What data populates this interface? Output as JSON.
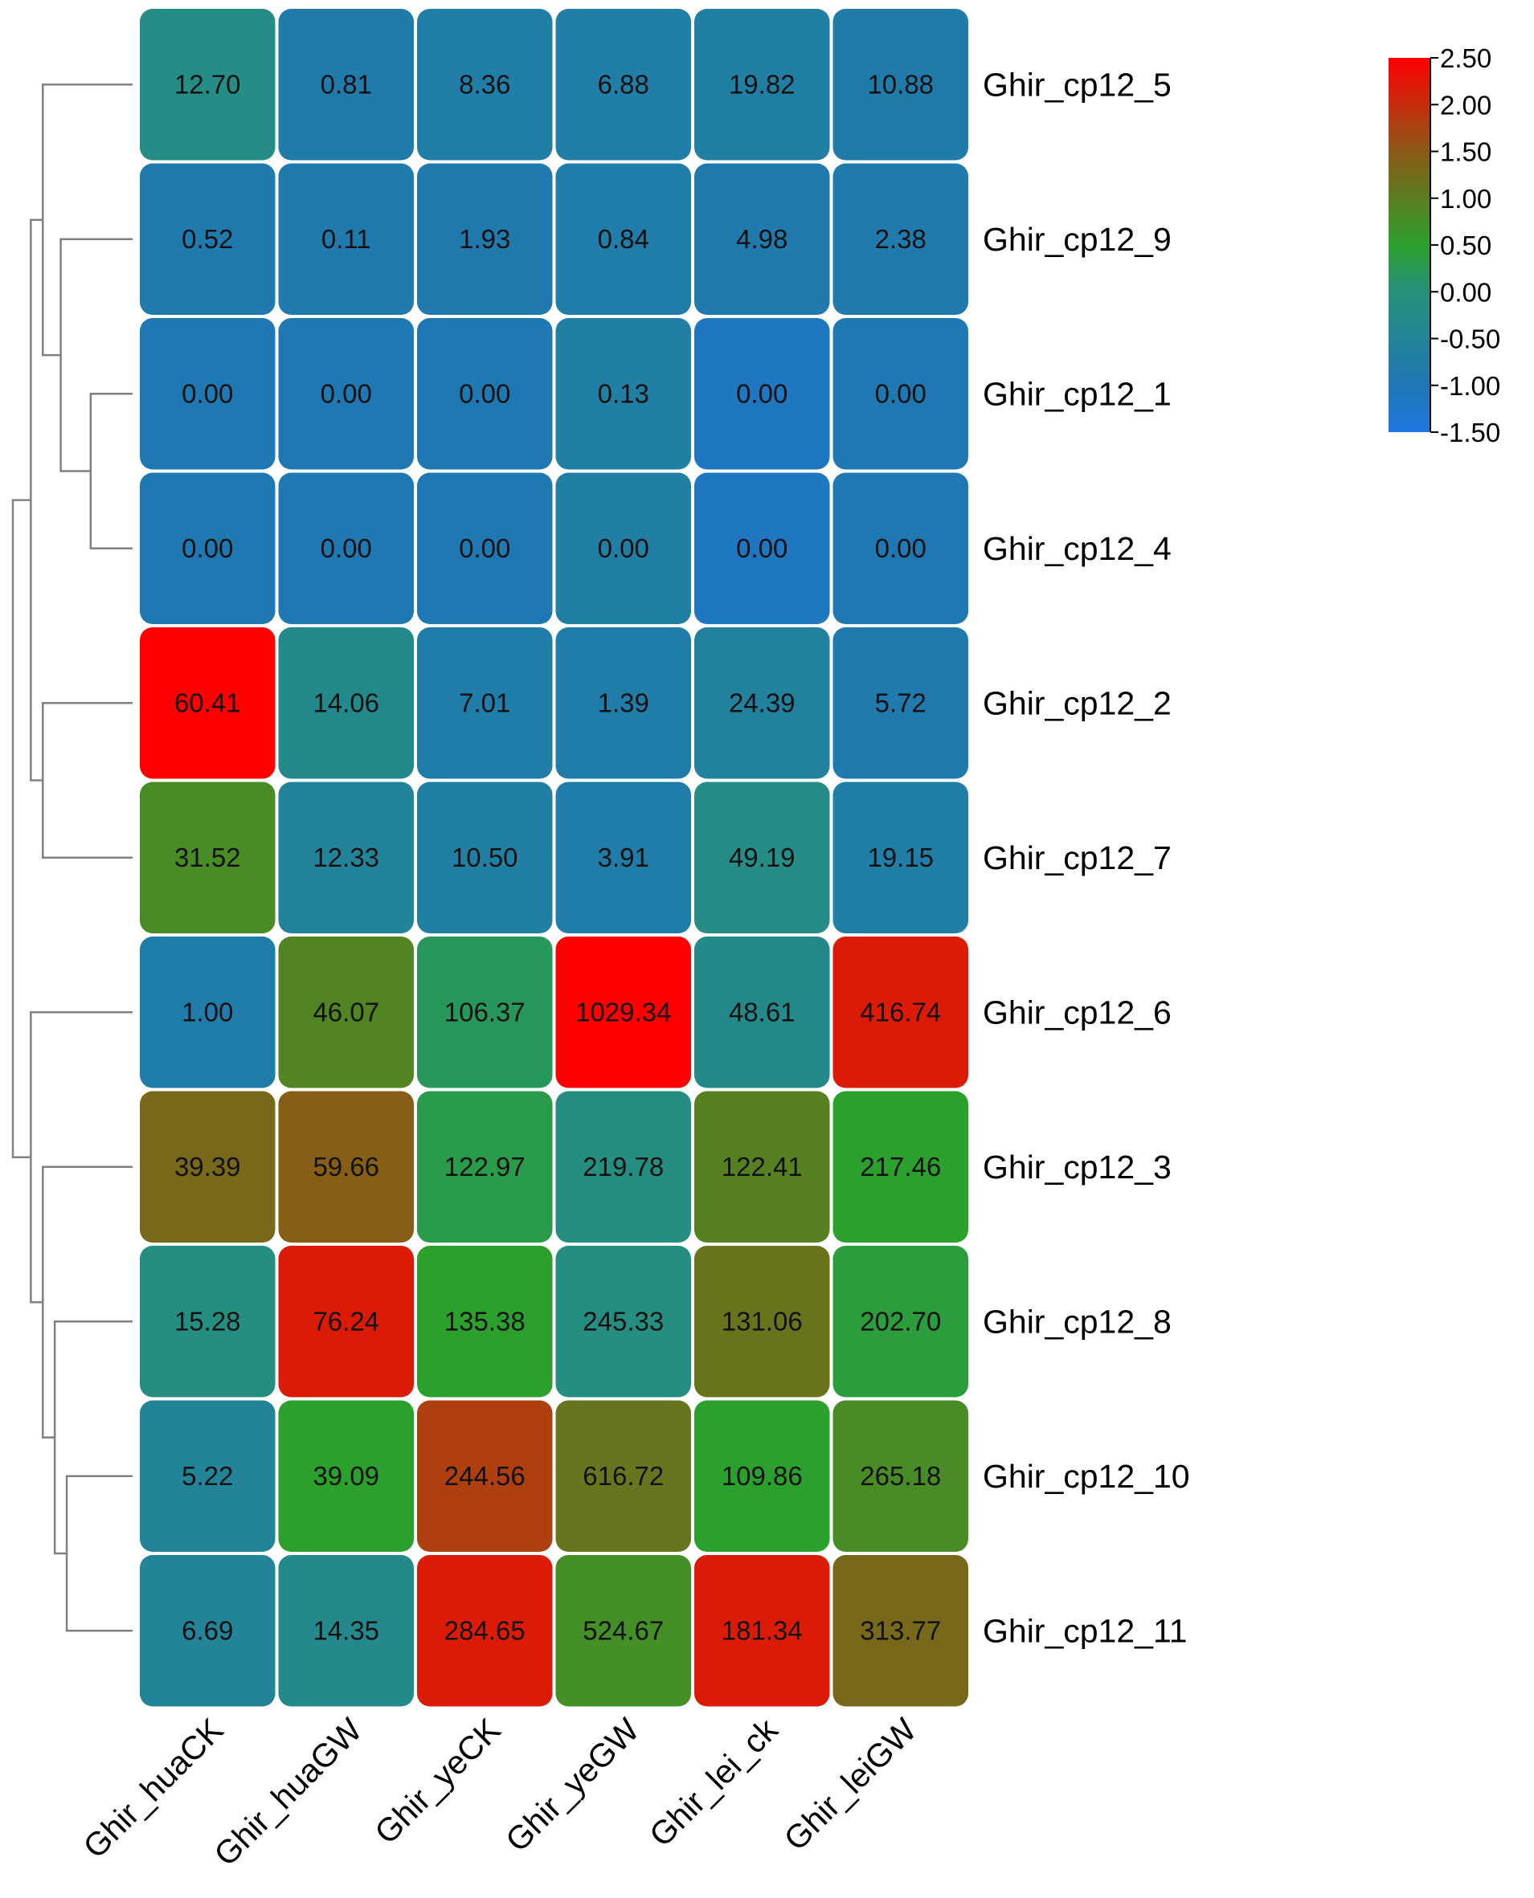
{
  "chart_data": {
    "type": "heatmap",
    "title": "",
    "xlabel": "",
    "ylabel": "",
    "columns": [
      "Ghir_huaCK",
      "Ghir_huaGW",
      "Ghir_yeCK",
      "Ghir_yeGW",
      "Ghir_lei_ck",
      "Ghir_leiGW"
    ],
    "rows": [
      "Ghir_cp12_5",
      "Ghir_cp12_9",
      "Ghir_cp12_1",
      "Ghir_cp12_4",
      "Ghir_cp12_2",
      "Ghir_cp12_7",
      "Ghir_cp12_6",
      "Ghir_cp12_3",
      "Ghir_cp12_8",
      "Ghir_cp12_10",
      "Ghir_cp12_11"
    ],
    "values": [
      [
        "12.70",
        "0.81",
        "8.36",
        "6.88",
        "19.82",
        "10.88"
      ],
      [
        "0.52",
        "0.11",
        "1.93",
        "0.84",
        "4.98",
        "2.38"
      ],
      [
        "0.00",
        "0.00",
        "0.00",
        "0.13",
        "0.00",
        "0.00"
      ],
      [
        "0.00",
        "0.00",
        "0.00",
        "0.00",
        "0.00",
        "0.00"
      ],
      [
        "60.41",
        "14.06",
        "7.01",
        "1.39",
        "24.39",
        "5.72"
      ],
      [
        "31.52",
        "12.33",
        "10.50",
        "3.91",
        "49.19",
        "19.15"
      ],
      [
        "1.00",
        "46.07",
        "106.37",
        "1029.34",
        "48.61",
        "416.74"
      ],
      [
        "39.39",
        "59.66",
        "122.97",
        "219.78",
        "122.41",
        "217.46"
      ],
      [
        "15.28",
        "76.24",
        "135.38",
        "245.33",
        "131.06",
        "202.70"
      ],
      [
        "5.22",
        "39.09",
        "244.56",
        "616.72",
        "109.86",
        "265.18"
      ],
      [
        "6.69",
        "14.35",
        "284.65",
        "524.67",
        "181.34",
        "313.77"
      ]
    ],
    "color_scores": [
      [
        -0.2,
        -0.85,
        -0.75,
        -0.75,
        -0.7,
        -0.85
      ],
      [
        -0.9,
        -0.9,
        -0.9,
        -0.8,
        -0.9,
        -0.9
      ],
      [
        -0.95,
        -0.95,
        -0.95,
        -0.7,
        -1.15,
        -0.95
      ],
      [
        -0.95,
        -0.95,
        -0.95,
        -0.7,
        -1.15,
        -0.95
      ],
      [
        2.5,
        -0.3,
        -0.8,
        -0.8,
        -0.6,
        -0.9
      ],
      [
        0.8,
        -0.55,
        -0.7,
        -0.8,
        -0.2,
        -0.75
      ],
      [
        -0.8,
        0.9,
        0.2,
        2.5,
        -0.3,
        2.2
      ],
      [
        1.3,
        1.45,
        0.3,
        -0.1,
        0.95,
        0.5
      ],
      [
        -0.1,
        2.2,
        0.5,
        -0.1,
        1.15,
        0.4
      ],
      [
        -0.5,
        0.5,
        1.8,
        1.1,
        0.5,
        0.8
      ],
      [
        -0.5,
        -0.3,
        2.2,
        0.75,
        2.2,
        1.3
      ]
    ],
    "colorbar": {
      "min": -1.5,
      "max": 2.5,
      "ticks": [
        "2.50",
        "2.00",
        "1.50",
        "1.00",
        "0.50",
        "0.00",
        "-0.50",
        "-1.00",
        "-1.50"
      ],
      "tick_values": [
        2.5,
        2.0,
        1.5,
        1.0,
        0.5,
        0.0,
        -0.5,
        -1.0,
        -1.5
      ],
      "stops": [
        {
          "value": -1.5,
          "color": "#1f78e0"
        },
        {
          "value": -1.0,
          "color": "#1f77b4"
        },
        {
          "value": 0.0,
          "color": "#26917a"
        },
        {
          "value": 0.5,
          "color": "#2ca02c"
        },
        {
          "value": 1.5,
          "color": "#8b5a14"
        },
        {
          "value": 2.5,
          "color": "#ff0000"
        }
      ]
    },
    "dendrogram": {
      "side": "left",
      "merges": [
        {
          "a": 2,
          "b": 3,
          "h": 0.35
        },
        {
          "a": 1,
          "b": 11,
          "h": 0.6
        },
        {
          "a": 0,
          "b": 12,
          "h": 0.75
        },
        {
          "a": 4,
          "b": 5,
          "h": 0.75
        },
        {
          "a": 13,
          "b": 14,
          "h": 0.85
        },
        {
          "a": 9,
          "b": 10,
          "h": 0.55
        },
        {
          "a": 8,
          "b": 16,
          "h": 0.65
        },
        {
          "a": 7,
          "b": 17,
          "h": 0.75
        },
        {
          "a": 6,
          "b": 18,
          "h": 0.85
        },
        {
          "a": 15,
          "b": 19,
          "h": 1.0
        }
      ]
    }
  }
}
